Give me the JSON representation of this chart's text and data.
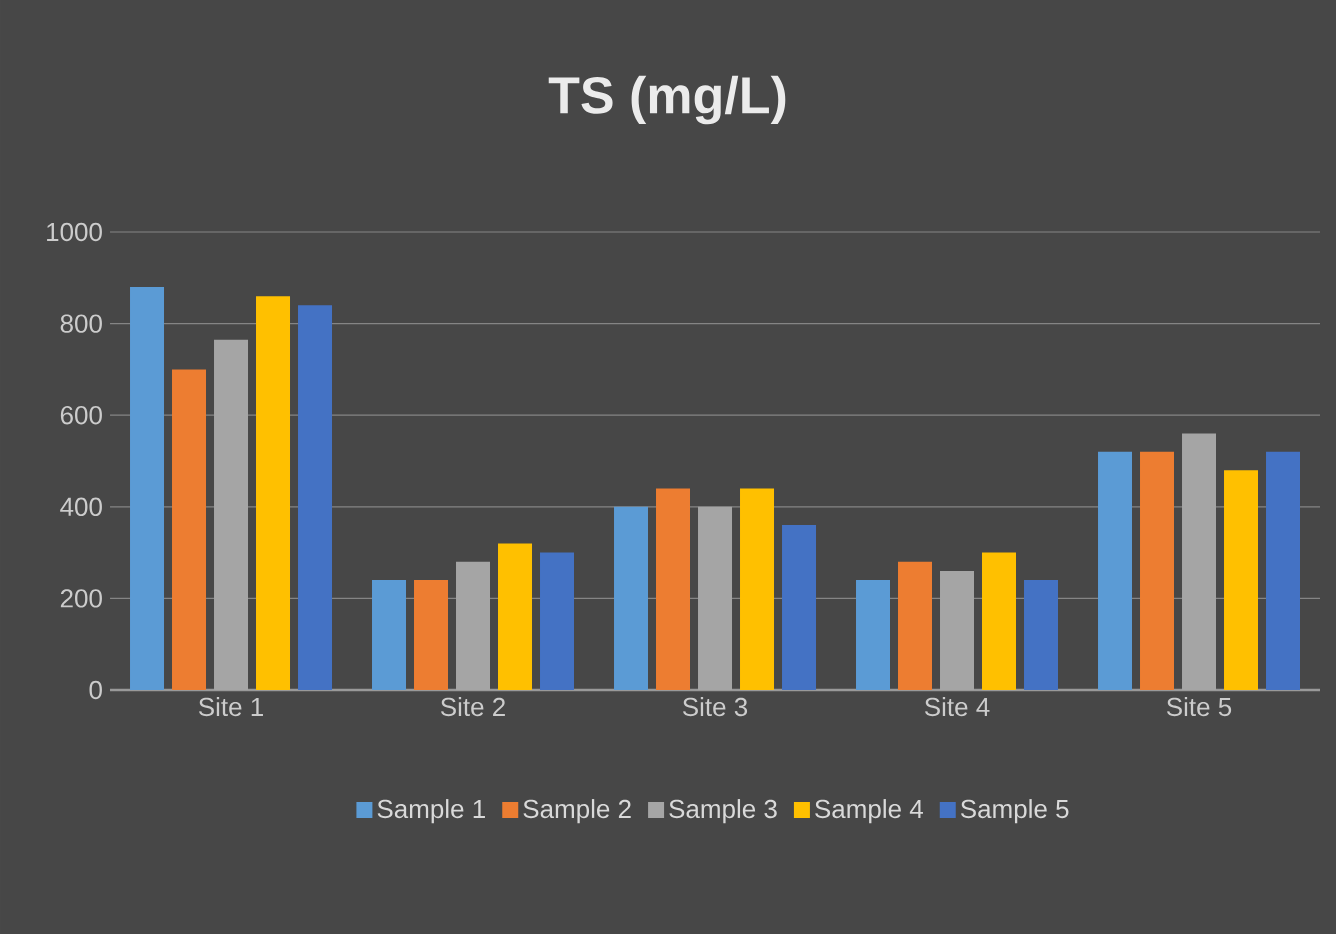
{
  "chart_data": {
    "type": "bar",
    "title": "TS (mg/L)",
    "categories": [
      "Site 1",
      "Site 2",
      "Site 3",
      "Site 4",
      "Site 5"
    ],
    "series": [
      {
        "name": "Sample 1",
        "color": "#5b9bd5",
        "values": [
          880,
          240,
          400,
          240,
          520
        ]
      },
      {
        "name": "Sample 2",
        "color": "#ed7d31",
        "values": [
          700,
          240,
          440,
          280,
          520
        ]
      },
      {
        "name": "Sample 3",
        "color": "#a5a5a5",
        "values": [
          765,
          280,
          400,
          260,
          560
        ]
      },
      {
        "name": "Sample 4",
        "color": "#ffc000",
        "values": [
          860,
          320,
          440,
          300,
          480
        ]
      },
      {
        "name": "Sample 5",
        "color": "#4472c4",
        "values": [
          840,
          300,
          360,
          240,
          520
        ]
      }
    ],
    "ylim": [
      0,
      1000
    ],
    "yticks": [
      0,
      200,
      400,
      600,
      800,
      1000
    ],
    "grid": "y",
    "legend": "bottom"
  }
}
